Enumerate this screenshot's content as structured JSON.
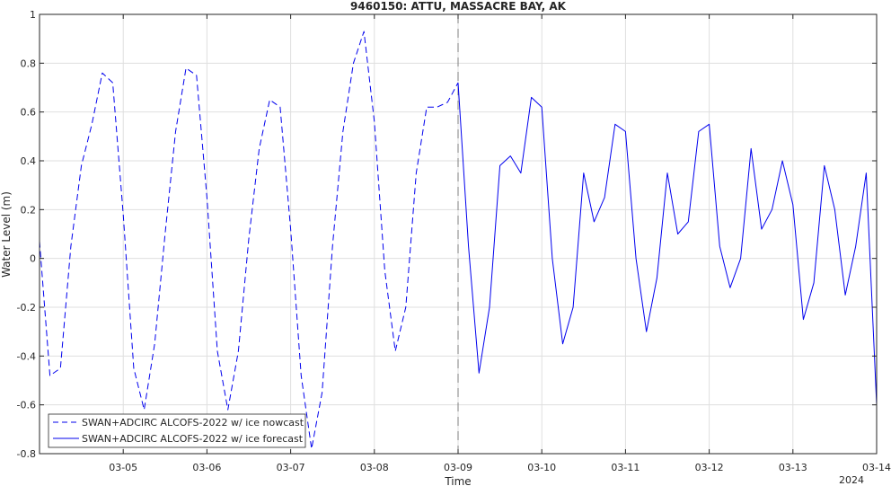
{
  "chart_data": {
    "type": "line",
    "title": "9460150: ATTU, MASSACRE BAY, AK",
    "xlabel": "Time",
    "ylabel": "Water Level (m)",
    "year_label": "2024",
    "xlim": [
      "03-04",
      "03-14"
    ],
    "ylim": [
      -0.8,
      1.0
    ],
    "x_ticks": [
      "03-05",
      "03-06",
      "03-07",
      "03-08",
      "03-09",
      "03-10",
      "03-11",
      "03-12",
      "03-13",
      "03-14"
    ],
    "y_ticks": [
      "-0.8",
      "-0.6",
      "-0.4",
      "-0.2",
      "0",
      "0.2",
      "0.4",
      "0.6",
      "0.8",
      "1"
    ],
    "grid": true,
    "legend_position": "bottom-left",
    "nowcast_end": "03-09",
    "colors": {
      "series": "#0000ee",
      "axis": "#262626",
      "grid": "#dfdfdf",
      "divider": "#7f7f7f"
    },
    "series": [
      {
        "name": "SWAN+ADCIRC ALCOFS-2022 w/ ice nowcast",
        "style": "dashed",
        "x": [
          "03-04 00:00",
          "03-04 03:00",
          "03-04 06:00",
          "03-04 09:00",
          "03-04 12:00",
          "03-04 15:00",
          "03-04 18:00",
          "03-04 21:00",
          "03-05 00:00",
          "03-05 03:00",
          "03-05 06:00",
          "03-05 09:00",
          "03-05 12:00",
          "03-05 15:00",
          "03-05 18:00",
          "03-05 21:00",
          "03-06 00:00",
          "03-06 03:00",
          "03-06 06:00",
          "03-06 09:00",
          "03-06 12:00",
          "03-06 15:00",
          "03-06 18:00",
          "03-06 21:00",
          "03-07 00:00",
          "03-07 03:00",
          "03-07 06:00",
          "03-07 09:00",
          "03-07 12:00",
          "03-07 15:00",
          "03-07 18:00",
          "03-07 21:00",
          "03-08 00:00",
          "03-08 03:00",
          "03-08 06:00",
          "03-08 09:00",
          "03-08 12:00",
          "03-08 15:00",
          "03-08 18:00",
          "03-08 21:00",
          "03-09 00:00"
        ],
        "values": [
          0.07,
          -0.48,
          -0.45,
          0.05,
          0.38,
          0.55,
          0.76,
          0.72,
          0.18,
          -0.45,
          -0.62,
          -0.35,
          0.1,
          0.52,
          0.78,
          0.75,
          0.25,
          -0.38,
          -0.62,
          -0.38,
          0.08,
          0.45,
          0.65,
          0.62,
          0.12,
          -0.48,
          -0.78,
          -0.55,
          0.05,
          0.52,
          0.8,
          0.93,
          0.56,
          -0.05,
          -0.38,
          -0.2,
          0.35,
          0.62,
          0.62,
          0.64,
          0.72
        ]
      },
      {
        "name": "SWAN+ADCIRC ALCOFS-2022 w/ ice forecast",
        "style": "solid",
        "x": [
          "03-09 00:00",
          "03-09 03:00",
          "03-09 06:00",
          "03-09 09:00",
          "03-09 12:00",
          "03-09 15:00",
          "03-09 18:00",
          "03-09 21:00",
          "03-10 00:00",
          "03-10 03:00",
          "03-10 06:00",
          "03-10 09:00",
          "03-10 12:00",
          "03-10 15:00",
          "03-10 18:00",
          "03-10 21:00",
          "03-11 00:00",
          "03-11 03:00",
          "03-11 06:00",
          "03-11 09:00",
          "03-11 12:00",
          "03-11 15:00",
          "03-11 18:00",
          "03-11 21:00",
          "03-12 00:00",
          "03-12 03:00",
          "03-12 06:00",
          "03-12 09:00",
          "03-12 12:00",
          "03-12 15:00",
          "03-12 18:00",
          "03-12 21:00",
          "03-13 00:00",
          "03-13 03:00",
          "03-13 06:00",
          "03-13 09:00",
          "03-13 12:00",
          "03-13 15:00",
          "03-13 18:00",
          "03-13 21:00",
          "03-14 00:00"
        ],
        "values": [
          0.72,
          0.05,
          -0.47,
          -0.2,
          0.38,
          0.42,
          0.35,
          0.66,
          0.62,
          0.0,
          -0.35,
          -0.2,
          0.35,
          0.15,
          0.25,
          0.55,
          0.52,
          0.0,
          -0.3,
          -0.08,
          0.35,
          0.1,
          0.15,
          0.52,
          0.55,
          0.05,
          -0.12,
          0.0,
          0.45,
          0.12,
          0.2,
          0.4,
          0.22,
          -0.25,
          -0.1,
          0.38,
          0.2,
          -0.15,
          0.05,
          0.35,
          -0.6
        ]
      }
    ]
  }
}
